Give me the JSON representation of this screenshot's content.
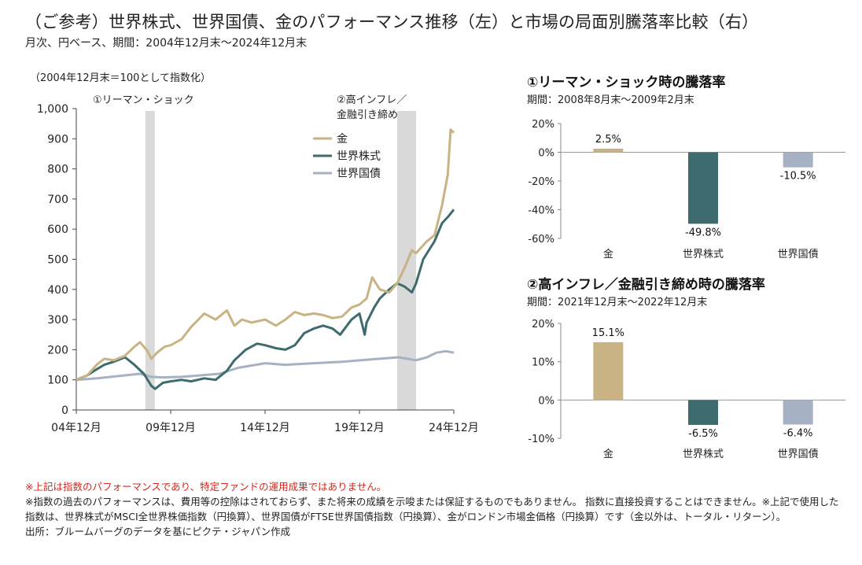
{
  "header": {
    "title": "（ご参考）世界株式、世界国債、金のパフォーマンス推移（左）と市場の局面別騰落率比較（右）",
    "subtitle": "月次、円ベース、期間：2004年12月末～2024年12月末"
  },
  "left_panel": {
    "index_note": "（2004年12月末＝100として指数化）",
    "shade_labels": [
      "①リーマン・ショック",
      "②高インフレ／",
      "金融引き締め"
    ]
  },
  "colors": {
    "gold": "#c9b283",
    "equity": "#3e6b6e",
    "bond": "#a6b2c4",
    "shade": "#d9d9d9",
    "warn": "#d0281f"
  },
  "chart_data": [
    {
      "type": "line",
      "title": "",
      "xlabel": "",
      "ylabel": "",
      "ylim": [
        0,
        1000
      ],
      "yticks": [
        0,
        100,
        200,
        300,
        400,
        500,
        600,
        700,
        800,
        900,
        1000
      ],
      "ytick_labels": [
        "0",
        "100",
        "200",
        "300",
        "400",
        "500",
        "600",
        "700",
        "800",
        "900",
        "1,000"
      ],
      "xlim": [
        2004.92,
        2024.92
      ],
      "xticks": [
        2004.92,
        2009.92,
        2014.92,
        2019.92,
        2024.92
      ],
      "xtick_labels": [
        "04年12月",
        "09年12月",
        "14年12月",
        "19年12月",
        "24年12月"
      ],
      "grid": false,
      "legend": "top-right",
      "shaded_periods": [
        {
          "label": "①リーマン・ショック",
          "x": [
            2008.58,
            2009.08
          ]
        },
        {
          "label": "②高インフレ／金融引き締め",
          "x": [
            2021.92,
            2022.92
          ]
        }
      ],
      "series": [
        {
          "name": "金",
          "color": "#c9b283",
          "x": [
            2004.92,
            2005.5,
            2006,
            2006.4,
            2006.9,
            2007.5,
            2008,
            2008.3,
            2008.7,
            2008.9,
            2009.2,
            2009.6,
            2009.92,
            2010.5,
            2011,
            2011.7,
            2012.3,
            2012.9,
            2013.3,
            2013.7,
            2014.2,
            2014.92,
            2015.5,
            2016,
            2016.5,
            2017,
            2017.5,
            2018,
            2018.5,
            2019,
            2019.5,
            2019.92,
            2020.3,
            2020.6,
            2021,
            2021.5,
            2021.92,
            2022.3,
            2022.7,
            2022.92,
            2023.5,
            2023.9,
            2024.3,
            2024.6,
            2024.75,
            2024.92
          ],
          "y": [
            100,
            115,
            150,
            170,
            165,
            180,
            210,
            225,
            195,
            170,
            190,
            210,
            215,
            235,
            275,
            320,
            300,
            330,
            280,
            300,
            290,
            300,
            280,
            300,
            325,
            315,
            320,
            315,
            305,
            310,
            340,
            350,
            370,
            440,
            400,
            390,
            420,
            470,
            530,
            520,
            560,
            580,
            680,
            780,
            930,
            920
          ]
        },
        {
          "name": "世界株式",
          "color": "#3e6b6e",
          "x": [
            2004.92,
            2005.5,
            2006,
            2006.4,
            2006.9,
            2007.5,
            2008,
            2008.5,
            2008.9,
            2009.1,
            2009.5,
            2009.92,
            2010.5,
            2011,
            2011.7,
            2012.3,
            2012.9,
            2013.3,
            2013.9,
            2014.5,
            2014.92,
            2015.5,
            2016,
            2016.5,
            2017,
            2017.5,
            2018,
            2018.5,
            2018.9,
            2019.5,
            2019.92,
            2020.2,
            2020.3,
            2020.7,
            2021,
            2021.5,
            2021.92,
            2022.3,
            2022.7,
            2022.92,
            2023.3,
            2023.9,
            2024.3,
            2024.6,
            2024.92
          ],
          "y": [
            100,
            115,
            135,
            150,
            160,
            175,
            150,
            120,
            80,
            70,
            90,
            95,
            100,
            95,
            105,
            100,
            130,
            165,
            200,
            220,
            215,
            205,
            200,
            215,
            255,
            270,
            280,
            270,
            250,
            300,
            320,
            250,
            290,
            340,
            370,
            400,
            420,
            410,
            390,
            420,
            500,
            560,
            620,
            640,
            665
          ]
        },
        {
          "name": "世界国債",
          "color": "#a6b2c4",
          "x": [
            2004.92,
            2006,
            2007.5,
            2008.3,
            2008.9,
            2009.5,
            2010.5,
            2011.5,
            2012.5,
            2013.5,
            2014.92,
            2016,
            2017.5,
            2019,
            2020,
            2021,
            2022,
            2022.92,
            2023.5,
            2024,
            2024.5,
            2024.92
          ],
          "y": [
            100,
            105,
            115,
            120,
            110,
            108,
            110,
            115,
            120,
            140,
            155,
            150,
            155,
            160,
            165,
            170,
            175,
            165,
            175,
            190,
            195,
            190
          ]
        }
      ]
    },
    {
      "type": "bar",
      "title": "①リーマン・ショック時の騰落率",
      "subtitle": "期間：2008年8月末～2009年2月末",
      "categories": [
        "金",
        "世界株式",
        "世界国債"
      ],
      "values": [
        2.5,
        -49.8,
        -10.5
      ],
      "value_labels": [
        "2.5%",
        "-49.8%",
        "-10.5%"
      ],
      "colors": [
        "#c9b283",
        "#3e6b6e",
        "#a6b2c4"
      ],
      "ylim": [
        -60,
        20
      ],
      "yticks": [
        -60,
        -40,
        -20,
        0,
        20
      ],
      "ytick_labels": [
        "-60%",
        "-40%",
        "-20%",
        "0%",
        "20%"
      ]
    },
    {
      "type": "bar",
      "title": "②高インフレ／金融引き締め時の騰落率",
      "subtitle": "期間：2021年12月末～2022年12月末",
      "categories": [
        "金",
        "世界株式",
        "世界国債"
      ],
      "values": [
        15.1,
        -6.5,
        -6.4
      ],
      "value_labels": [
        "15.1%",
        "-6.5%",
        "-6.4%"
      ],
      "colors": [
        "#c9b283",
        "#3e6b6e",
        "#a6b2c4"
      ],
      "ylim": [
        -10,
        20
      ],
      "yticks": [
        -10,
        0,
        10,
        20
      ],
      "ytick_labels": [
        "-10%",
        "0%",
        "10%",
        "20%"
      ]
    }
  ],
  "notes": {
    "warning": "※上記は指数のパフォーマンスであり、特定ファンドの運用成果ではありません。",
    "line1": "※指数の過去のパフォーマンスは、費用等の控除はされておらず、また将来の成績を示唆または保証するものでもありません。 指数に直接投資することはできません。※上記で使用した指数は、世界株式がMSCI全世界株価指数（円換算）、世界国債がFTSE世界国債指数（円換算）、金がロンドン市場金価格（円換算）です（金以外は、トータル・リターン）。",
    "source": "出所：ブルームバーグのデータを基にピクテ・ジャパン作成"
  }
}
